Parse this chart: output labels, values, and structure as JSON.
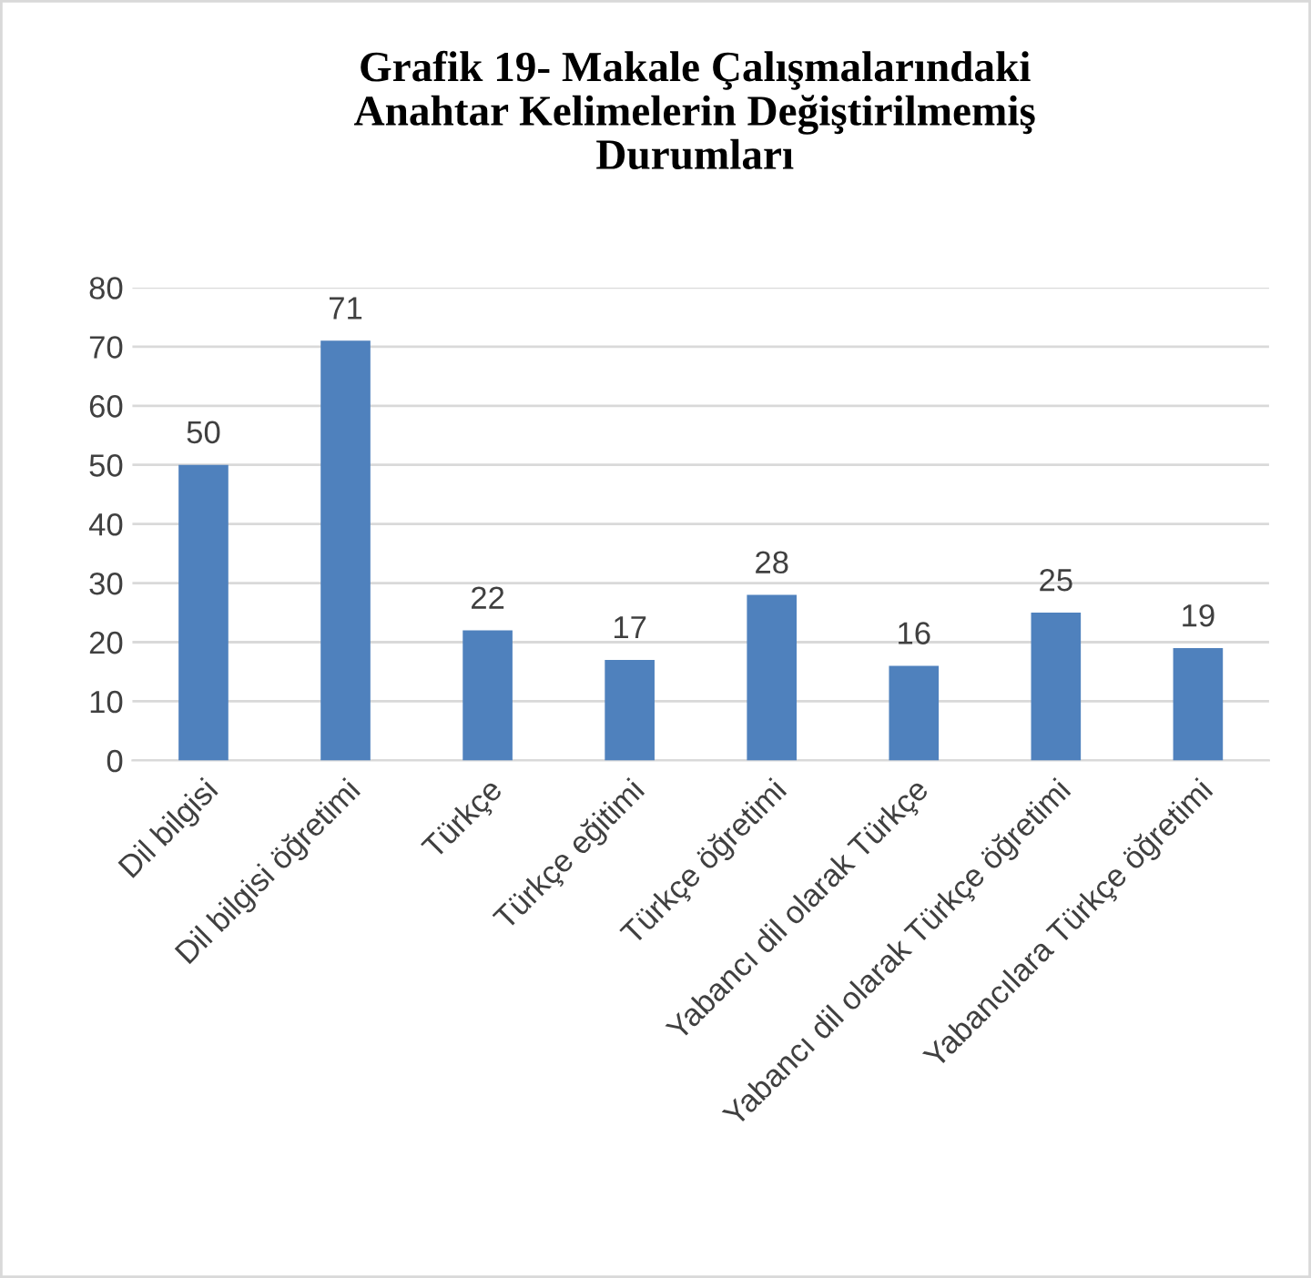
{
  "chart_data": {
    "type": "bar",
    "title": "Grafik 19- Makale Çalışmalarındaki\nAnahtar Kelimelerin Değiştirilmemiş\nDurumları",
    "categories": [
      "Dil bilgisi",
      "Dil bilgisi öğretimi",
      "Türkçe",
      "Türkçe eğitimi",
      "Türkçe öğretimi",
      "Yabancı dil olarak Türkçe",
      "Yabancı dil olarak Türkçe öğretimi",
      "Yabancılara Türkçe öğretimi"
    ],
    "values": [
      50,
      71,
      22,
      17,
      28,
      16,
      25,
      19
    ],
    "color": "#4f81bd",
    "ylim": [
      0,
      80
    ],
    "yticks": [
      0,
      10,
      20,
      30,
      40,
      50,
      60,
      70,
      80
    ],
    "grid": "y",
    "data_labels": true,
    "legend": false
  }
}
